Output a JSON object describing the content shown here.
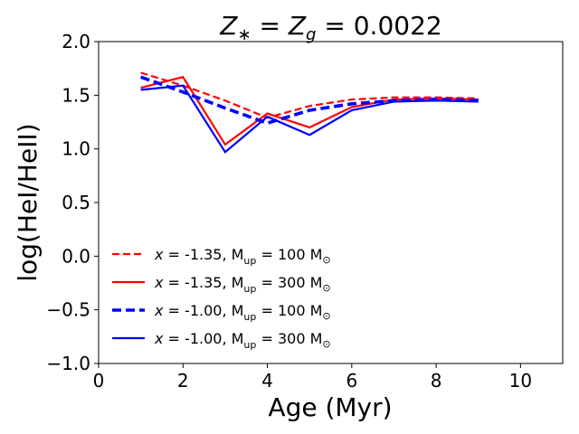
{
  "chart_data": {
    "type": "line",
    "title": "Z∗ = Zg = 0.0022",
    "title_parts": {
      "lhs_symbol": "Z",
      "lhs_sub": "∗",
      "eq1": " = ",
      "mid_symbol": "Z",
      "mid_sub": "g",
      "eq2": " = 0.0022"
    },
    "xlabel": "Age (Myr)",
    "ylabel": "log(HeI/HeII)",
    "xlim": [
      0,
      11
    ],
    "ylim": [
      -1.0,
      2.0
    ],
    "xticks": [
      0,
      2,
      4,
      6,
      8,
      10
    ],
    "xtick_labels": [
      "0",
      "2",
      "4",
      "6",
      "8",
      "10"
    ],
    "yticks": [
      -1.0,
      -0.5,
      0.0,
      0.5,
      1.0,
      1.5,
      2.0
    ],
    "ytick_labels": [
      "−1.0",
      "−0.5",
      "0.0",
      "0.5",
      "1.0",
      "1.5",
      "2.0"
    ],
    "grid": false,
    "legend_position": "lower-left",
    "series": [
      {
        "name": "x = -1.35, Mup = 100 M⊙",
        "legend": {
          "var": "x",
          "text1": " = -1.35, M",
          "sub": "up",
          "text2": " = 100 M",
          "sun": "⊙"
        },
        "color": "#ff0000",
        "linestyle": "dashed",
        "linewidth": "thin",
        "x": [
          1,
          2,
          3,
          4,
          5,
          6,
          7,
          8,
          9
        ],
        "y": [
          1.71,
          1.59,
          1.45,
          1.29,
          1.4,
          1.46,
          1.48,
          1.48,
          1.47
        ]
      },
      {
        "name": "x = -1.35, Mup = 300 M⊙",
        "legend": {
          "var": "x",
          "text1": " = -1.35, M",
          "sub": "up",
          "text2": " = 300 M",
          "sun": "⊙"
        },
        "color": "#ff0000",
        "linestyle": "solid",
        "linewidth": "thin",
        "x": [
          1,
          2,
          3,
          4,
          5,
          6,
          7,
          8,
          9
        ],
        "y": [
          1.57,
          1.67,
          1.04,
          1.33,
          1.2,
          1.39,
          1.46,
          1.47,
          1.46
        ]
      },
      {
        "name": "x = -1.00, Mup = 100 M⊙",
        "legend": {
          "var": "x",
          "text1": " = -1.00, M",
          "sub": "up",
          "text2": " = 100 M",
          "sun": "⊙"
        },
        "color": "#0000ff",
        "linestyle": "dashed",
        "linewidth": "thick",
        "x": [
          1,
          2,
          3,
          4,
          5,
          6,
          7,
          8,
          9
        ],
        "y": [
          1.67,
          1.53,
          1.38,
          1.24,
          1.36,
          1.42,
          1.45,
          1.46,
          1.45
        ]
      },
      {
        "name": "x = -1.00, Mup = 300 M⊙",
        "legend": {
          "var": "x",
          "text1": " = -1.00, M",
          "sub": "up",
          "text2": " = 300 M",
          "sun": "⊙"
        },
        "color": "#0000ff",
        "linestyle": "solid",
        "linewidth": "thin",
        "x": [
          1,
          2,
          3,
          4,
          5,
          6,
          7,
          8,
          9
        ],
        "y": [
          1.55,
          1.59,
          0.97,
          1.3,
          1.13,
          1.36,
          1.44,
          1.45,
          1.44
        ]
      }
    ]
  }
}
